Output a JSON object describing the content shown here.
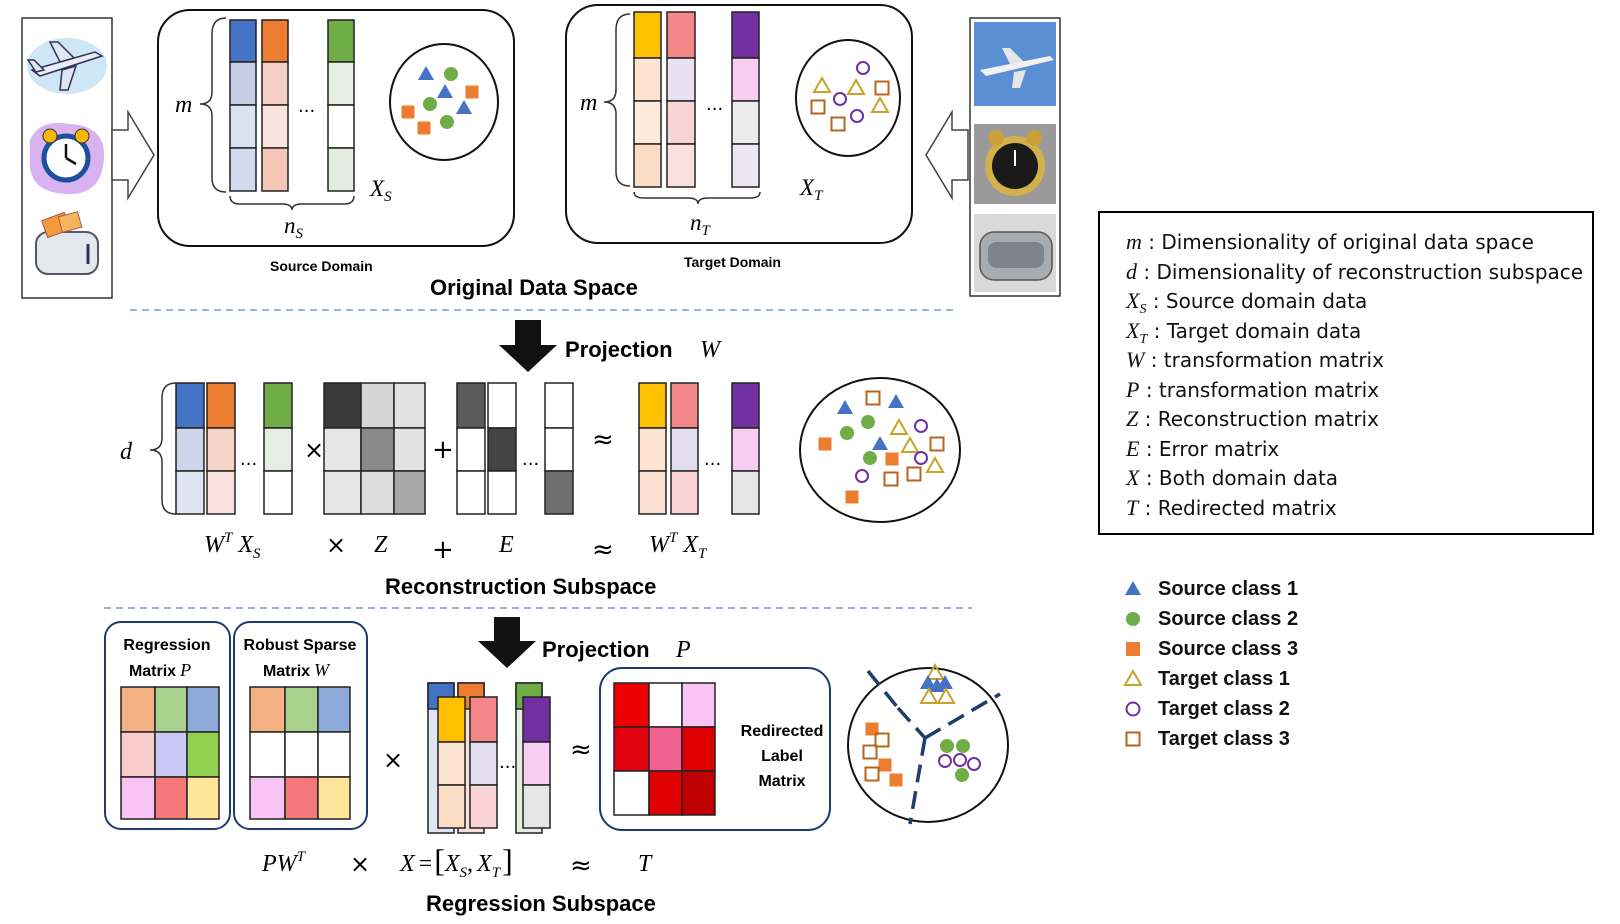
{
  "colors": {
    "blue": "#4472c4",
    "orange": "#ed7d31",
    "green": "#70ad47",
    "yellow": "#ffc000",
    "pink": "#f4878a",
    "purple": "#7030a0",
    "gold": "#c9a227",
    "violet": "#8e44ad",
    "brown": "#b5651d"
  },
  "icons": [
    "airplane-icon",
    "alarm-clock-icon",
    "toaster-icon",
    "airplane-photo-icon",
    "alarm-clock-photo-icon",
    "toaster-photo-icon"
  ],
  "section1": {
    "title": "Original Data Space",
    "source_caption": "Source Domain",
    "target_caption": "Target Domain",
    "source_rows": "m",
    "target_rows": "m",
    "source_cols": "n",
    "source_cols_sub": "S",
    "target_cols": "n",
    "target_cols_sub": "T",
    "source_matrix": "X",
    "source_matrix_sub": "S",
    "target_matrix": "X",
    "target_matrix_sub": "T",
    "ellipsis": "..."
  },
  "section2": {
    "projection_label": "Projection",
    "projection_symbol": "W",
    "title": "Reconstruction Subspace",
    "rows": "d",
    "times": "×",
    "plus": "+",
    "approx": "≈",
    "ellipsis": "...",
    "eq_wt": "W",
    "eq_wt_sup": "T",
    "eq_xs": "X",
    "eq_xs_sub": "S",
    "eq_z": "Z",
    "eq_e": "E",
    "eq_xt": "X",
    "eq_xt_sub": "T"
  },
  "section3": {
    "projection_label": "Projection",
    "projection_symbol": "P",
    "title": "Regression Subspace",
    "regression_box_line1": "Regression",
    "regression_box_line2": "Matrix",
    "regression_box_symbol": "P",
    "sparse_box_line1": "Robust Sparse",
    "sparse_box_line2": "Matrix",
    "sparse_box_symbol": "W",
    "redirected_line1": "Redirected",
    "redirected_line2": "Label",
    "redirected_line3": "Matrix",
    "times": "×",
    "approx": "≈",
    "ellipsis": "...",
    "eq_pw": "PW",
    "eq_pw_sup": "T",
    "eq_x": "X",
    "eq_equals": "=",
    "eq_lbr": "[",
    "eq_xs": "X",
    "eq_xs_sub": "S",
    "eq_comma": ",",
    "eq_xt": "X",
    "eq_xt_sub": "T",
    "eq_rbr": "]",
    "eq_t": "T"
  },
  "legend": {
    "items": [
      {
        "symbol": "m",
        "sub": "",
        "text": ": Dimensionality of original data space"
      },
      {
        "symbol": "d",
        "sub": "",
        "text": ":  Dimensionality of reconstruction subspace"
      },
      {
        "symbol": "X",
        "sub": "S",
        "text": ": Source domain data"
      },
      {
        "symbol": "X",
        "sub": "T",
        "text": ": Target domain data"
      },
      {
        "symbol": "W",
        "sub": "",
        "text": ": transformation matrix"
      },
      {
        "symbol": "P",
        "sub": "",
        "text": ": transformation matrix"
      },
      {
        "symbol": "Z",
        "sub": "",
        "text": ": Reconstruction matrix"
      },
      {
        "symbol": "E",
        "sub": "",
        "text": ": Error matrix"
      },
      {
        "symbol": "X",
        "sub": "",
        "text": ": Both domain data"
      },
      {
        "symbol": "T",
        "sub": "",
        "text": ": Redirected matrix"
      }
    ]
  },
  "class_legend": [
    {
      "marker": "filled-triangle",
      "label": "Source class 1"
    },
    {
      "marker": "filled-circle",
      "label": "Source class 2"
    },
    {
      "marker": "filled-square",
      "label": "Source class 3"
    },
    {
      "marker": "hollow-triangle",
      "label": "Target class 1"
    },
    {
      "marker": "hollow-circle",
      "label": "Target class 2"
    },
    {
      "marker": "hollow-square",
      "label": "Target class 3"
    }
  ]
}
